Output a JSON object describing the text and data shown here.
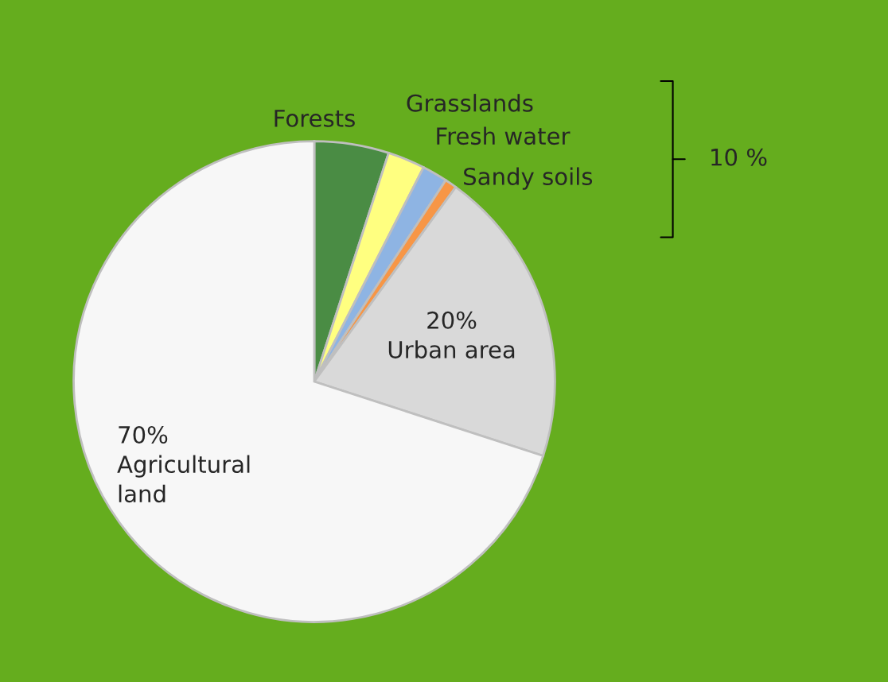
{
  "chart_data": {
    "type": "pie",
    "categories": [
      "Forests",
      "Grasslands",
      "Fresh water",
      "Sandy soils",
      "Urban area",
      "Agricultural land"
    ],
    "values": [
      5,
      2.5,
      1.7,
      0.8,
      20,
      70
    ],
    "colors": [
      "#4a8c44",
      "#ffff80",
      "#8eb4e3",
      "#f79646",
      "#d9d9d9",
      "#f7f7f7"
    ],
    "value_labels": [
      null,
      null,
      null,
      null,
      "20%",
      "70%"
    ],
    "annotations": [
      "10 %"
    ]
  }
}
